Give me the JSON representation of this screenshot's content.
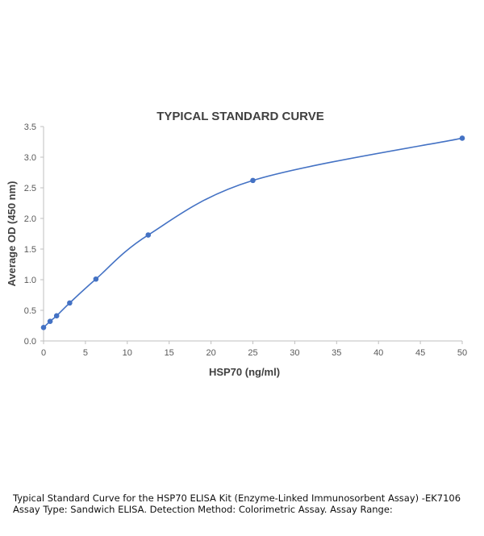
{
  "chart_data": {
    "type": "line",
    "title": "TYPICAL STANDARD CURVE",
    "xlabel": "HSP70 (ng/ml)",
    "ylabel": "Average OD (450 nm)",
    "xlim": [
      0,
      50
    ],
    "ylim": [
      0,
      3.5
    ],
    "x_ticks": [
      "0",
      "5",
      "10",
      "15",
      "20",
      "25",
      "30",
      "35",
      "40",
      "45",
      "50"
    ],
    "y_ticks": [
      "0.0",
      "0.5",
      "1.0",
      "1.5",
      "2.0",
      "2.5",
      "3.0",
      "3.5"
    ],
    "grid": false,
    "legend": "none",
    "series": [
      {
        "color": "#4472c4",
        "smooth": true,
        "points": [
          {
            "x": 0,
            "y": 0.22
          },
          {
            "x": 0.78,
            "y": 0.32
          },
          {
            "x": 1.56,
            "y": 0.41
          },
          {
            "x": 3.12,
            "y": 0.62
          },
          {
            "x": 6.25,
            "y": 1.01
          },
          {
            "x": 12.5,
            "y": 1.73
          },
          {
            "x": 25,
            "y": 2.62
          },
          {
            "x": 50,
            "y": 3.31
          }
        ]
      }
    ]
  },
  "caption": "Typical Standard Curve for the HSP70 ELISA Kit (Enzyme-Linked Immunosorbent Assay) -EK7106 Assay Type: Sandwich ELISA. Detection Method: Colorimetric Assay. Assay Range:"
}
